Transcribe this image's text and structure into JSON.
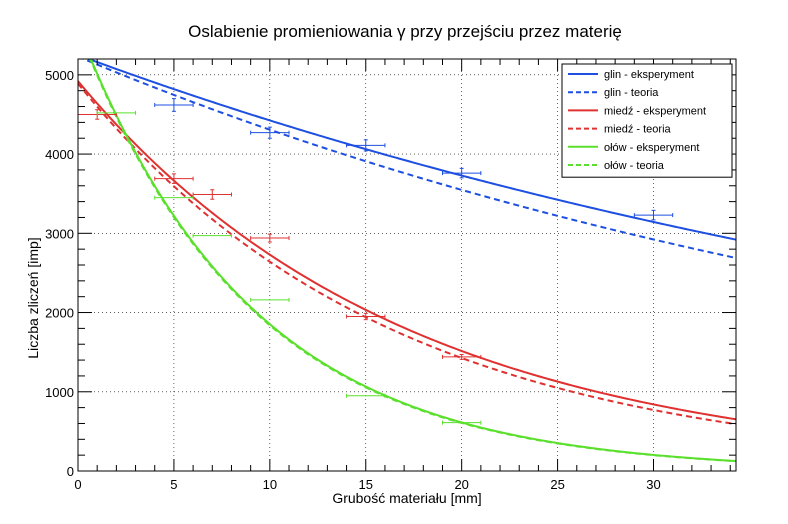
{
  "chart_data": {
    "type": "scatter",
    "title": "Oslabienie promieniowania γ przy przejściu przez materię",
    "xlabel": "Grubość materiału [mm]",
    "ylabel": "Liczba zliczeń [imp]",
    "xlim": [
      0,
      34.3
    ],
    "ylim": [
      0,
      5200
    ],
    "x_ticks": [
      0,
      5,
      10,
      15,
      20,
      25,
      30
    ],
    "y_ticks": [
      0,
      1000,
      2000,
      3000,
      4000,
      5000
    ],
    "grid": true,
    "legend_position": "top-right",
    "series": [
      {
        "name": "glin - eksperyment",
        "kind": "curve",
        "style": "solid",
        "color": "#1d4fe0",
        "model": {
          "a": 5250,
          "mu": 0.0171
        },
        "points": [
          {
            "x": 5,
            "y": 4620,
            "xerr": 1,
            "yerr": 80
          },
          {
            "x": 10,
            "y": 4270,
            "xerr": 1,
            "yerr": 70
          },
          {
            "x": 15,
            "y": 4110,
            "xerr": 1,
            "yerr": 70
          },
          {
            "x": 20,
            "y": 3760,
            "xerr": 1,
            "yerr": 60
          },
          {
            "x": 30,
            "y": 3230,
            "xerr": 1,
            "yerr": 60
          }
        ]
      },
      {
        "name": "glin - teoria",
        "kind": "curve",
        "style": "dashed",
        "color": "#1d4fe0",
        "model": {
          "a": 5230,
          "mu": 0.0194
        }
      },
      {
        "name": "miedź - eksperyment",
        "kind": "curve",
        "style": "solid",
        "color": "#e03131",
        "model": {
          "a": 4920,
          "mu": 0.0589
        },
        "points": [
          {
            "x": 1,
            "y": 4500,
            "xerr": 1,
            "yerr": 60
          },
          {
            "x": 5,
            "y": 3690,
            "xerr": 1,
            "yerr": 60
          },
          {
            "x": 7,
            "y": 3490,
            "xerr": 1,
            "yerr": 60
          },
          {
            "x": 10,
            "y": 2940,
            "xerr": 1,
            "yerr": 50
          },
          {
            "x": 15,
            "y": 1950,
            "xerr": 1,
            "yerr": 40
          },
          {
            "x": 20,
            "y": 1440,
            "xerr": 1,
            "yerr": 30
          }
        ]
      },
      {
        "name": "miedź - teoria",
        "kind": "curve",
        "style": "dashed",
        "color": "#e03131",
        "model": {
          "a": 4890,
          "mu": 0.0616
        }
      },
      {
        "name": "ołów - eksperyment",
        "kind": "curve",
        "style": "solid",
        "color": "#5ae02c",
        "model": {
          "a": 5600,
          "mu": 0.1106
        },
        "points": [
          {
            "x": 2,
            "y": 4520,
            "xerr": 1,
            "yerr": 0
          },
          {
            "x": 5,
            "y": 3450,
            "xerr": 1,
            "yerr": 0
          },
          {
            "x": 7,
            "y": 2970,
            "xerr": 1,
            "yerr": 0
          },
          {
            "x": 10,
            "y": 2160,
            "xerr": 1,
            "yerr": 0
          },
          {
            "x": 15,
            "y": 950,
            "xerr": 1,
            "yerr": 0
          },
          {
            "x": 20,
            "y": 610,
            "xerr": 1,
            "yerr": 0
          }
        ]
      },
      {
        "name": "ołów - teoria",
        "kind": "curve",
        "style": "dashed",
        "color": "#5ae02c",
        "model": {
          "a": 5580,
          "mu": 0.111
        }
      }
    ]
  }
}
